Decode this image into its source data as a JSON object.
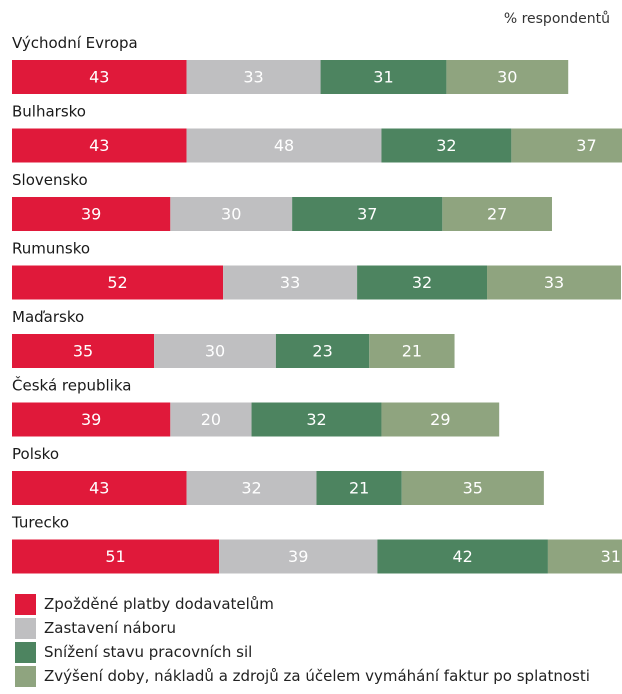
{
  "unit_label": "% respondentů",
  "colors": [
    "#e0193a",
    "#bfbfc1",
    "#4d8460",
    "#8fa47f"
  ],
  "chart_data": {
    "type": "bar",
    "orientation": "horizontal",
    "stacked": true,
    "categories": [
      "Východní Evropa",
      "Bulharsko",
      "Slovensko",
      "Rumunsko",
      "Maďarsko",
      "Česká republika",
      "Polsko",
      "Turecko"
    ],
    "series": [
      {
        "name": "Zpožděné platby dodavatelům",
        "values": [
          43,
          43,
          39,
          52,
          35,
          39,
          43,
          51
        ]
      },
      {
        "name": "Zastavení náboru",
        "values": [
          33,
          48,
          30,
          33,
          30,
          20,
          32,
          39
        ]
      },
      {
        "name": "Snížení stavu pracovních sil",
        "values": [
          31,
          32,
          37,
          32,
          23,
          32,
          21,
          42
        ]
      },
      {
        "name": "Zvýšení doby, nákladů a zdrojů za účelem vymáhání faktur po splatnosti",
        "values": [
          30,
          37,
          27,
          33,
          21,
          29,
          35,
          31
        ]
      }
    ],
    "grid": false,
    "legend_position": "bottom"
  }
}
